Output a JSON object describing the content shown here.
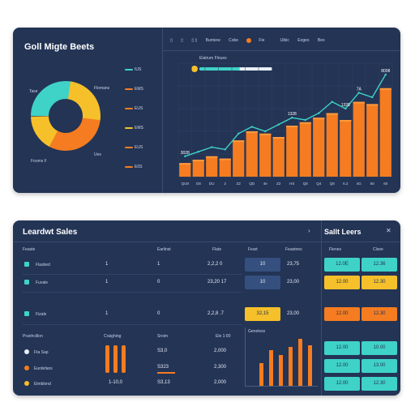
{
  "top": {
    "title": "Goll Migte Beets",
    "toolbar": [
      "▯",
      "▯",
      "▯  ▯",
      "Burniew",
      "Cobe",
      "Fie",
      "Ulbic",
      "Eoges",
      "Bes"
    ],
    "progress_label": "Elatrum Flnues",
    "progress": 0.55,
    "donut_labels": [
      "Tase",
      "Flomans",
      "Fooms F",
      "Ues"
    ],
    "legend_values": [
      "IUS",
      "EMS",
      "EUS",
      "EMS",
      "EUS",
      "E0S"
    ],
    "colors": {
      "teal": "#3fd2c7",
      "yellow": "#f6c02a",
      "orange": "#f57c20",
      "panel": "#233455"
    }
  },
  "bottom": {
    "title": "Leardwt Sales",
    "side_title": "Sallt Leers",
    "table": {
      "headers": [
        "Feaste",
        "Earlinst",
        "Flate",
        "Feart",
        "Feastnes"
      ],
      "rows": [
        {
          "name": "Flasbed",
          "a": "1",
          "b": "1",
          "c": "2,2,2 0",
          "chip": "10",
          "chip2": "23,75"
        },
        {
          "name": "Fuvale",
          "a": "1",
          "b": "0",
          "c": "23,20 17",
          "chip": "10",
          "chip2": "23,00"
        },
        {
          "name": "Fizale",
          "a": "1",
          "b": "0",
          "c": "2,2,8 .7",
          "chip": "32,15",
          "chip2": "23,00"
        }
      ]
    },
    "lower": {
      "headers": [
        "Pranhcillon",
        "Craighing",
        "Sroim",
        "Ele 1:00"
      ],
      "items": [
        {
          "name": "Fta Sap",
          "val1": "S3,0",
          "val2": "2,000"
        },
        {
          "name": "Eurdefans",
          "val1": "S323",
          "val2": "2,300"
        },
        {
          "name": "Elmblond",
          "val1": "S3,13",
          "val2": "2,000"
        }
      ],
      "bar_total": "1-10,0",
      "mini_title": "Geneless"
    },
    "side": {
      "headers": [
        "Flenes",
        "Clsee"
      ],
      "chips": [
        [
          "12.0E",
          "12.36"
        ],
        [
          "12.00",
          "12.30"
        ],
        [
          "12.00",
          "12.30"
        ],
        [
          "12.00",
          "10.00"
        ],
        [
          "12.00",
          "13.00"
        ],
        [
          "12.00",
          "12.30"
        ]
      ]
    }
  },
  "chart_data": {
    "type": "bar",
    "categories": [
      "QU8",
      "G8",
      "DU",
      "2",
      "Z2",
      "QD",
      "4e",
      "Z2",
      "HS",
      "Q8",
      "Q4",
      "Q8",
      "6.2",
      "4G",
      "50",
      "60"
    ],
    "values": [
      12,
      15,
      18,
      16,
      32,
      40,
      38,
      35,
      45,
      48,
      52,
      56,
      50,
      66,
      64,
      78
    ],
    "line": [
      18,
      22,
      26,
      24,
      38,
      44,
      40,
      46,
      52,
      50,
      56,
      66,
      60,
      74,
      70,
      90
    ],
    "data_labels": [
      "3028",
      "",
      "",
      "",
      "",
      "",
      "",
      "",
      "1328",
      "",
      "",
      "",
      "1328",
      "7A",
      "",
      "8008"
    ],
    "y_ticks": [
      "",
      "",
      "",
      "",
      "",
      ""
    ],
    "ylim": [
      0,
      100
    ]
  }
}
